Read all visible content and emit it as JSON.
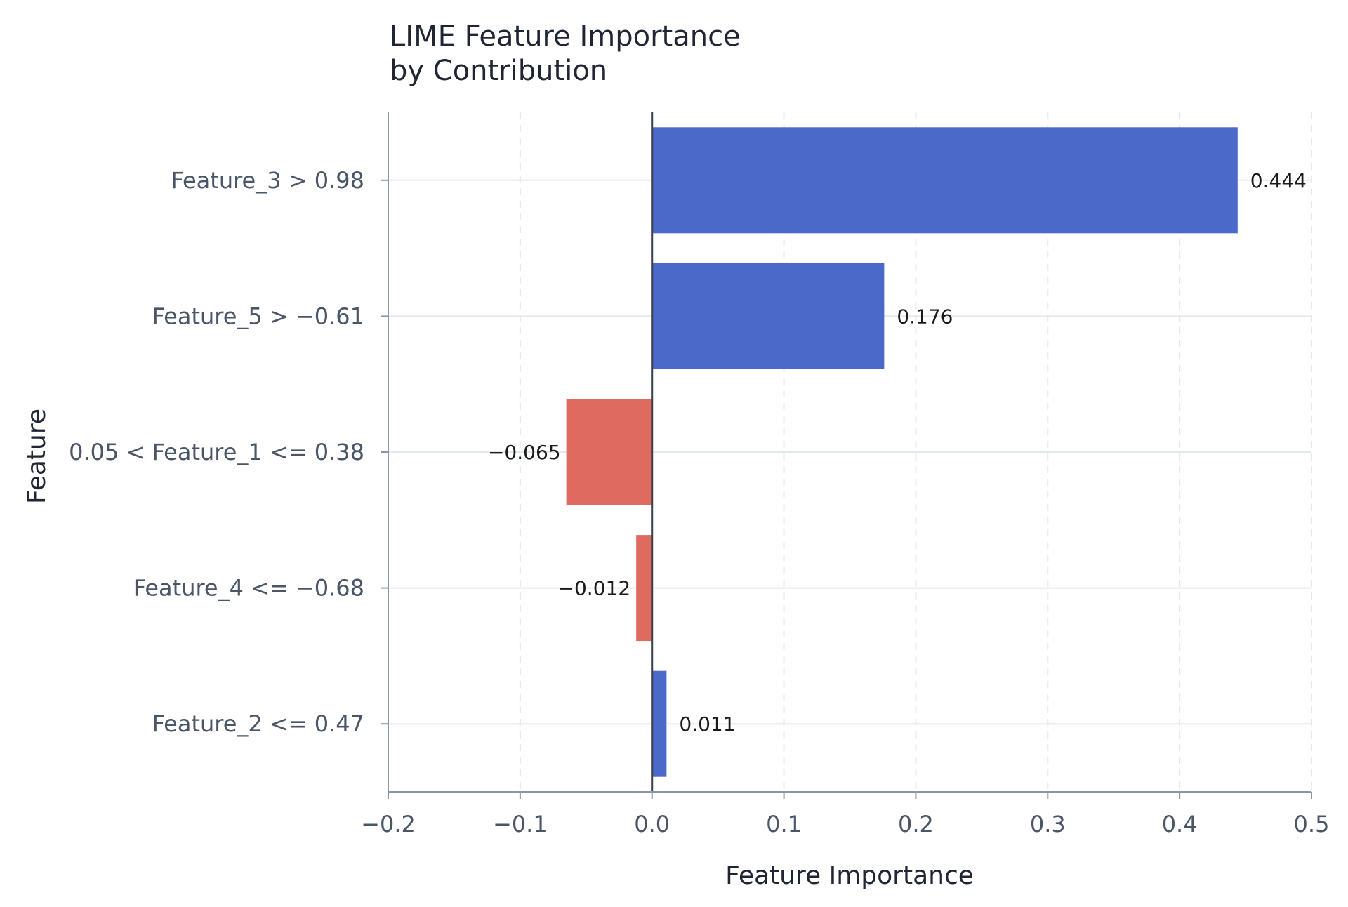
{
  "chart_data": {
    "type": "bar",
    "orientation": "horizontal",
    "title_lines": [
      "LIME Feature Importance",
      "by Contribution"
    ],
    "xlabel": "Feature Importance",
    "ylabel": "Feature",
    "xlim": [
      -0.2,
      0.5
    ],
    "xticks": [
      -0.2,
      -0.1,
      0.0,
      0.1,
      0.2,
      0.3,
      0.4,
      0.5
    ],
    "xtick_labels": [
      "−0.2",
      "−0.1",
      "0.0",
      "0.1",
      "0.2",
      "0.3",
      "0.4",
      "0.5"
    ],
    "categories": [
      "Feature_3 > 0.98",
      "Feature_5 > −0.61",
      "0.05 < Feature_1 <= 0.38",
      "Feature_4 <= −0.68",
      "Feature_2 <= 0.47"
    ],
    "values": [
      0.444,
      0.176,
      -0.065,
      -0.012,
      0.011
    ],
    "value_labels": [
      "0.444",
      "0.176",
      "−0.065",
      "−0.012",
      "0.011"
    ],
    "grid": true,
    "colors": {
      "positive": "#4a69c9",
      "negative": "#df6b60",
      "zero_line": "#3a3f4a",
      "axis": "#8a96ad",
      "grid": "#e3e8ef"
    }
  }
}
